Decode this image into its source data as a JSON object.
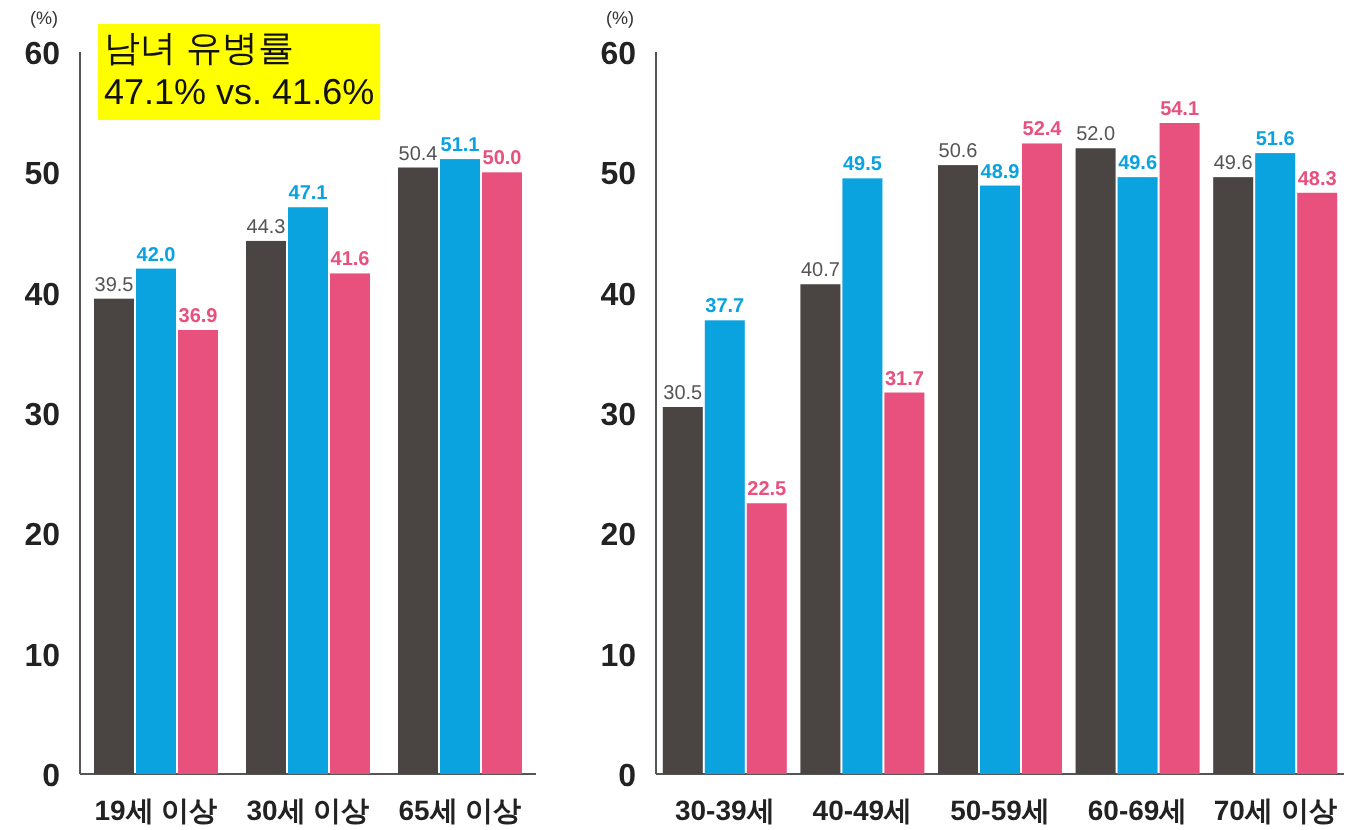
{
  "chart_data": [
    {
      "type": "bar",
      "ylabel": "(%)",
      "categories": [
        "19세 이상",
        "30세 이상",
        "65세 이상"
      ],
      "ylim": [
        0,
        60
      ],
      "yticks": [
        0,
        10,
        20,
        30,
        40,
        50,
        60
      ],
      "grid": false,
      "annotations": [
        "남녀 유병률\n47.1% vs. 41.6%"
      ],
      "series": [
        {
          "color": "#4a4443",
          "values": [
            39.5,
            44.3,
            50.4
          ],
          "value_labels": [
            "39.5",
            "44.3",
            "50.4"
          ]
        },
        {
          "color": "#0aa3e0",
          "values": [
            42.0,
            47.1,
            51.1
          ],
          "value_labels": [
            "42.0",
            "47.1",
            "51.1"
          ]
        },
        {
          "color": "#e8507e",
          "values": [
            36.9,
            41.6,
            50.0
          ],
          "value_labels": [
            "36.9",
            "41.6",
            "50.0"
          ]
        }
      ]
    },
    {
      "type": "bar",
      "ylabel": "(%)",
      "categories": [
        "30-39세",
        "40-49세",
        "50-59세",
        "60-69세",
        "70세 이상"
      ],
      "ylim": [
        0,
        60
      ],
      "yticks": [
        0,
        10,
        20,
        30,
        40,
        50,
        60
      ],
      "grid": false,
      "series": [
        {
          "color": "#4a4443",
          "values": [
            30.5,
            40.7,
            50.6,
            52.0,
            49.6
          ],
          "value_labels": [
            "30.5",
            "40.7",
            "50.6",
            "52.0",
            "49.6"
          ]
        },
        {
          "color": "#0aa3e0",
          "values": [
            37.7,
            49.5,
            48.9,
            49.6,
            51.6
          ],
          "value_labels": [
            "37.7",
            "49.5",
            "48.9",
            "49.6",
            "51.6"
          ]
        },
        {
          "color": "#e8507e",
          "values": [
            22.5,
            31.7,
            52.4,
            54.1,
            48.3
          ],
          "value_labels": [
            "22.5",
            "31.7",
            "52.4",
            "54.1",
            "48.3"
          ]
        }
      ]
    }
  ]
}
